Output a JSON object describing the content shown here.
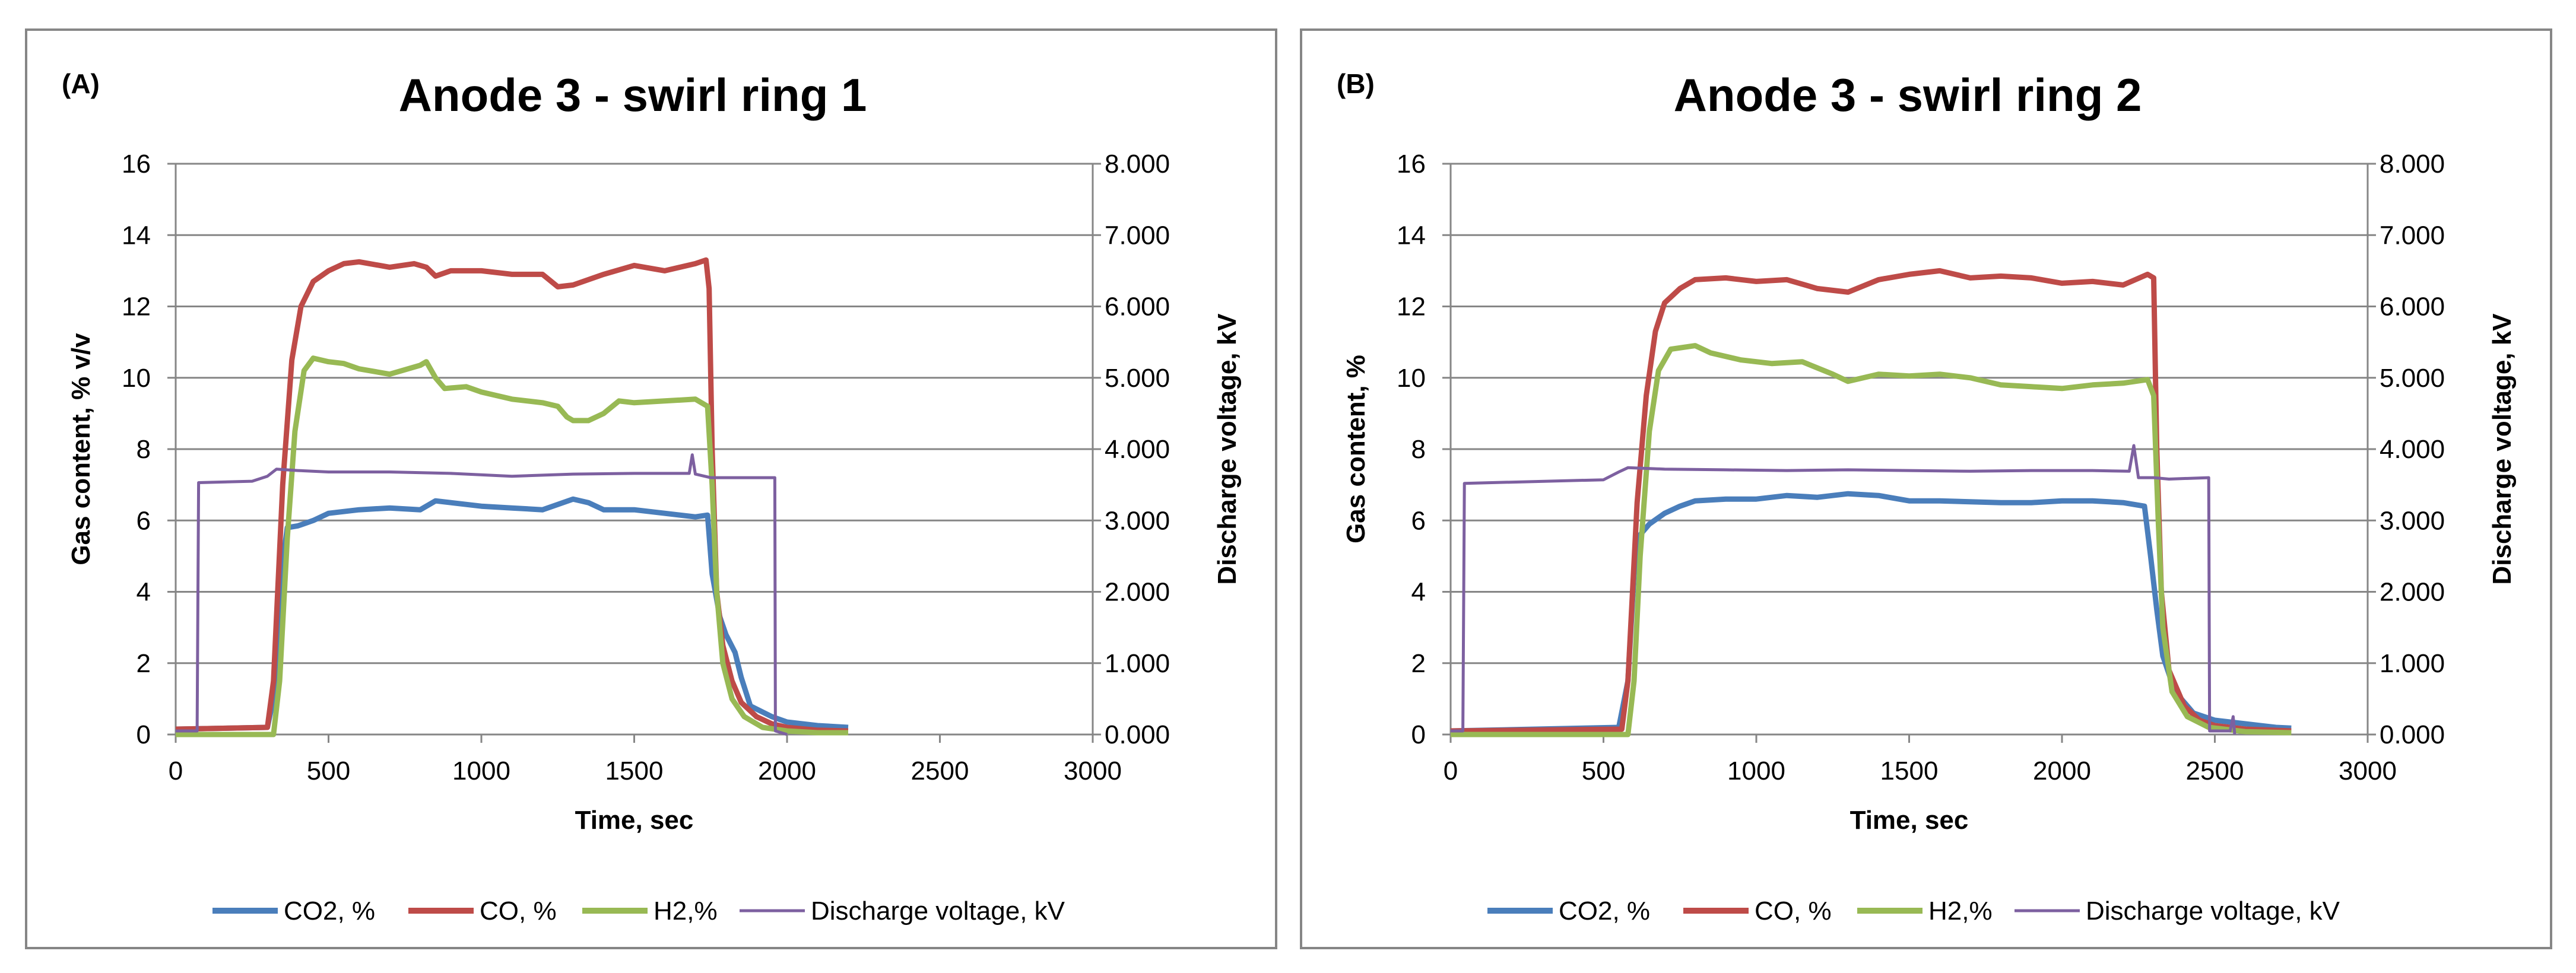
{
  "chart_data": [
    {
      "type": "line",
      "panel_label": "(A)",
      "title": "Anode 3 - swirl ring 1",
      "xlabel": "Time, sec",
      "ylabel": "Gas content, % v/v",
      "y2label": "Discharge voltage, kV",
      "xlim": [
        0,
        3000
      ],
      "ylim": [
        0,
        16
      ],
      "y2lim": [
        0,
        8
      ],
      "x_ticks": [
        "0",
        "500",
        "1000",
        "1500",
        "2000",
        "2500",
        "3000"
      ],
      "y_ticks": [
        "0",
        "2",
        "4",
        "6",
        "8",
        "10",
        "12",
        "14",
        "16"
      ],
      "y2_ticks": [
        "0.000",
        "1.000",
        "2.000",
        "3.000",
        "4.000",
        "5.000",
        "6.000",
        "7.000",
        "8.000"
      ],
      "legend_position": "bottom",
      "grid": true,
      "series": [
        {
          "name": "CO2, %",
          "color": "#4a7ebb",
          "axis": "left",
          "points": [
            [
              0,
              0.15
            ],
            [
              300,
              0.2
            ],
            [
              320,
              1.0
            ],
            [
              345,
              4.5
            ],
            [
              365,
              5.8
            ],
            [
              400,
              5.85
            ],
            [
              450,
              6.0
            ],
            [
              500,
              6.2
            ],
            [
              600,
              6.3
            ],
            [
              700,
              6.35
            ],
            [
              800,
              6.3
            ],
            [
              850,
              6.55
            ],
            [
              900,
              6.5
            ],
            [
              1000,
              6.4
            ],
            [
              1100,
              6.35
            ],
            [
              1200,
              6.3
            ],
            [
              1250,
              6.45
            ],
            [
              1300,
              6.6
            ],
            [
              1350,
              6.5
            ],
            [
              1400,
              6.3
            ],
            [
              1500,
              6.3
            ],
            [
              1600,
              6.2
            ],
            [
              1700,
              6.1
            ],
            [
              1740,
              6.15
            ],
            [
              1755,
              4.5
            ],
            [
              1780,
              3.3
            ],
            [
              1800,
              2.8
            ],
            [
              1830,
              2.3
            ],
            [
              1850,
              1.6
            ],
            [
              1880,
              0.8
            ],
            [
              1950,
              0.5
            ],
            [
              2000,
              0.35
            ],
            [
              2100,
              0.25
            ],
            [
              2200,
              0.2
            ]
          ]
        },
        {
          "name": "CO, %",
          "color": "#be4b48",
          "axis": "left",
          "points": [
            [
              0,
              0.15
            ],
            [
              300,
              0.2
            ],
            [
              320,
              1.5
            ],
            [
              350,
              7.0
            ],
            [
              380,
              10.5
            ],
            [
              410,
              12.0
            ],
            [
              450,
              12.7
            ],
            [
              500,
              13.0
            ],
            [
              550,
              13.2
            ],
            [
              600,
              13.25
            ],
            [
              700,
              13.1
            ],
            [
              780,
              13.2
            ],
            [
              820,
              13.1
            ],
            [
              850,
              12.85
            ],
            [
              900,
              13.0
            ],
            [
              1000,
              13.0
            ],
            [
              1100,
              12.9
            ],
            [
              1200,
              12.9
            ],
            [
              1250,
              12.55
            ],
            [
              1300,
              12.6
            ],
            [
              1400,
              12.9
            ],
            [
              1500,
              13.15
            ],
            [
              1600,
              13.0
            ],
            [
              1700,
              13.2
            ],
            [
              1735,
              13.3
            ],
            [
              1745,
              12.5
            ],
            [
              1755,
              8.0
            ],
            [
              1770,
              4.0
            ],
            [
              1790,
              2.5
            ],
            [
              1820,
              1.5
            ],
            [
              1850,
              0.9
            ],
            [
              1900,
              0.5
            ],
            [
              1950,
              0.3
            ],
            [
              2000,
              0.2
            ],
            [
              2100,
              0.12
            ],
            [
              2200,
              0.1
            ]
          ]
        },
        {
          "name": "H2,%",
          "color": "#98b954",
          "axis": "left",
          "points": [
            [
              0,
              0.0
            ],
            [
              320,
              0.0
            ],
            [
              340,
              1.5
            ],
            [
              365,
              5.5
            ],
            [
              390,
              8.5
            ],
            [
              420,
              10.2
            ],
            [
              450,
              10.55
            ],
            [
              500,
              10.45
            ],
            [
              550,
              10.4
            ],
            [
              600,
              10.25
            ],
            [
              700,
              10.1
            ],
            [
              800,
              10.35
            ],
            [
              820,
              10.45
            ],
            [
              850,
              10.0
            ],
            [
              880,
              9.7
            ],
            [
              950,
              9.75
            ],
            [
              1000,
              9.6
            ],
            [
              1100,
              9.4
            ],
            [
              1200,
              9.3
            ],
            [
              1250,
              9.2
            ],
            [
              1280,
              8.9
            ],
            [
              1300,
              8.8
            ],
            [
              1350,
              8.8
            ],
            [
              1400,
              9.0
            ],
            [
              1450,
              9.35
            ],
            [
              1500,
              9.3
            ],
            [
              1600,
              9.35
            ],
            [
              1700,
              9.4
            ],
            [
              1740,
              9.2
            ],
            [
              1755,
              7.0
            ],
            [
              1770,
              4.0
            ],
            [
              1790,
              2.0
            ],
            [
              1820,
              1.0
            ],
            [
              1860,
              0.5
            ],
            [
              1920,
              0.2
            ],
            [
              2000,
              0.1
            ],
            [
              2100,
              0.05
            ],
            [
              2200,
              0.05
            ]
          ]
        },
        {
          "name": "Discharge voltage, kV",
          "color": "#7d60a0",
          "axis": "right",
          "points": [
            [
              0,
              0.05
            ],
            [
              70,
              0.05
            ],
            [
              75,
              3.53
            ],
            [
              250,
              3.55
            ],
            [
              300,
              3.62
            ],
            [
              330,
              3.72
            ],
            [
              400,
              3.7
            ],
            [
              500,
              3.68
            ],
            [
              700,
              3.68
            ],
            [
              900,
              3.66
            ],
            [
              1100,
              3.62
            ],
            [
              1300,
              3.65
            ],
            [
              1500,
              3.66
            ],
            [
              1680,
              3.66
            ],
            [
              1690,
              3.92
            ],
            [
              1700,
              3.65
            ],
            [
              1750,
              3.6
            ],
            [
              1960,
              3.6
            ],
            [
              1962,
              0.05
            ],
            [
              2000,
              0.0
            ]
          ]
        }
      ]
    },
    {
      "type": "line",
      "panel_label": "(B)",
      "title": "Anode 3 - swirl ring 2",
      "xlabel": "Time, sec",
      "ylabel": "Gas content, %",
      "y2label": "Discharge voltage, kV",
      "xlim": [
        0,
        3000
      ],
      "ylim": [
        0,
        16
      ],
      "y2lim": [
        0,
        8
      ],
      "x_ticks": [
        "0",
        "500",
        "1000",
        "1500",
        "2000",
        "2500",
        "3000"
      ],
      "y_ticks": [
        "0",
        "2",
        "4",
        "6",
        "8",
        "10",
        "12",
        "14",
        "16"
      ],
      "y2_ticks": [
        "0.000",
        "1.000",
        "2.000",
        "3.000",
        "4.000",
        "5.000",
        "6.000",
        "7.000",
        "8.000"
      ],
      "legend_position": "bottom",
      "grid": true,
      "series": [
        {
          "name": "CO2, %",
          "color": "#4a7ebb",
          "axis": "left",
          "points": [
            [
              0,
              0.1
            ],
            [
              550,
              0.2
            ],
            [
              580,
              1.5
            ],
            [
              600,
              4.5
            ],
            [
              620,
              5.6
            ],
            [
              650,
              5.9
            ],
            [
              700,
              6.2
            ],
            [
              750,
              6.4
            ],
            [
              800,
              6.55
            ],
            [
              900,
              6.6
            ],
            [
              1000,
              6.6
            ],
            [
              1100,
              6.7
            ],
            [
              1200,
              6.65
            ],
            [
              1300,
              6.75
            ],
            [
              1400,
              6.7
            ],
            [
              1500,
              6.55
            ],
            [
              1600,
              6.55
            ],
            [
              1800,
              6.5
            ],
            [
              1900,
              6.5
            ],
            [
              2000,
              6.55
            ],
            [
              2100,
              6.55
            ],
            [
              2200,
              6.5
            ],
            [
              2270,
              6.4
            ],
            [
              2290,
              5.0
            ],
            [
              2310,
              3.5
            ],
            [
              2330,
              2.2
            ],
            [
              2370,
              1.2
            ],
            [
              2430,
              0.6
            ],
            [
              2500,
              0.4
            ],
            [
              2600,
              0.3
            ],
            [
              2700,
              0.2
            ],
            [
              2750,
              0.18
            ]
          ]
        },
        {
          "name": "CO, %",
          "color": "#be4b48",
          "axis": "left",
          "points": [
            [
              0,
              0.1
            ],
            [
              560,
              0.15
            ],
            [
              580,
              1.5
            ],
            [
              610,
              6.5
            ],
            [
              640,
              9.5
            ],
            [
              670,
              11.3
            ],
            [
              700,
              12.1
            ],
            [
              750,
              12.5
            ],
            [
              800,
              12.75
            ],
            [
              900,
              12.8
            ],
            [
              1000,
              12.7
            ],
            [
              1100,
              12.75
            ],
            [
              1200,
              12.5
            ],
            [
              1300,
              12.4
            ],
            [
              1400,
              12.75
            ],
            [
              1500,
              12.9
            ],
            [
              1600,
              13.0
            ],
            [
              1700,
              12.8
            ],
            [
              1800,
              12.85
            ],
            [
              1900,
              12.8
            ],
            [
              2000,
              12.65
            ],
            [
              2100,
              12.7
            ],
            [
              2200,
              12.6
            ],
            [
              2280,
              12.9
            ],
            [
              2300,
              12.8
            ],
            [
              2310,
              8.0
            ],
            [
              2325,
              4.0
            ],
            [
              2350,
              1.8
            ],
            [
              2400,
              0.8
            ],
            [
              2450,
              0.4
            ],
            [
              2500,
              0.25
            ],
            [
              2600,
              0.15
            ],
            [
              2750,
              0.1
            ]
          ]
        },
        {
          "name": "H2,%",
          "color": "#98b954",
          "axis": "left",
          "points": [
            [
              0,
              0.0
            ],
            [
              580,
              0.0
            ],
            [
              600,
              1.5
            ],
            [
              620,
              5.0
            ],
            [
              650,
              8.5
            ],
            [
              680,
              10.2
            ],
            [
              720,
              10.8
            ],
            [
              800,
              10.9
            ],
            [
              850,
              10.7
            ],
            [
              950,
              10.5
            ],
            [
              1050,
              10.4
            ],
            [
              1150,
              10.45
            ],
            [
              1250,
              10.1
            ],
            [
              1300,
              9.9
            ],
            [
              1400,
              10.1
            ],
            [
              1500,
              10.05
            ],
            [
              1600,
              10.1
            ],
            [
              1700,
              10.0
            ],
            [
              1800,
              9.8
            ],
            [
              1900,
              9.75
            ],
            [
              2000,
              9.7
            ],
            [
              2100,
              9.8
            ],
            [
              2200,
              9.85
            ],
            [
              2280,
              9.95
            ],
            [
              2300,
              9.5
            ],
            [
              2315,
              6.0
            ],
            [
              2330,
              3.0
            ],
            [
              2360,
              1.2
            ],
            [
              2410,
              0.5
            ],
            [
              2480,
              0.2
            ],
            [
              2600,
              0.08
            ],
            [
              2750,
              0.05
            ]
          ]
        },
        {
          "name": "Discharge voltage, kV",
          "color": "#7d60a0",
          "axis": "right",
          "points": [
            [
              0,
              0.05
            ],
            [
              40,
              0.05
            ],
            [
              45,
              3.52
            ],
            [
              500,
              3.57
            ],
            [
              550,
              3.68
            ],
            [
              580,
              3.74
            ],
            [
              700,
              3.72
            ],
            [
              900,
              3.71
            ],
            [
              1100,
              3.7
            ],
            [
              1300,
              3.71
            ],
            [
              1500,
              3.7
            ],
            [
              1700,
              3.69
            ],
            [
              1900,
              3.7
            ],
            [
              2100,
              3.7
            ],
            [
              2220,
              3.69
            ],
            [
              2235,
              4.05
            ],
            [
              2250,
              3.6
            ],
            [
              2300,
              3.6
            ],
            [
              2350,
              3.58
            ],
            [
              2480,
              3.6
            ],
            [
              2483,
              0.05
            ],
            [
              2550,
              0.05
            ],
            [
              2560,
              0.25
            ],
            [
              2565,
              0.0
            ]
          ]
        }
      ]
    }
  ]
}
